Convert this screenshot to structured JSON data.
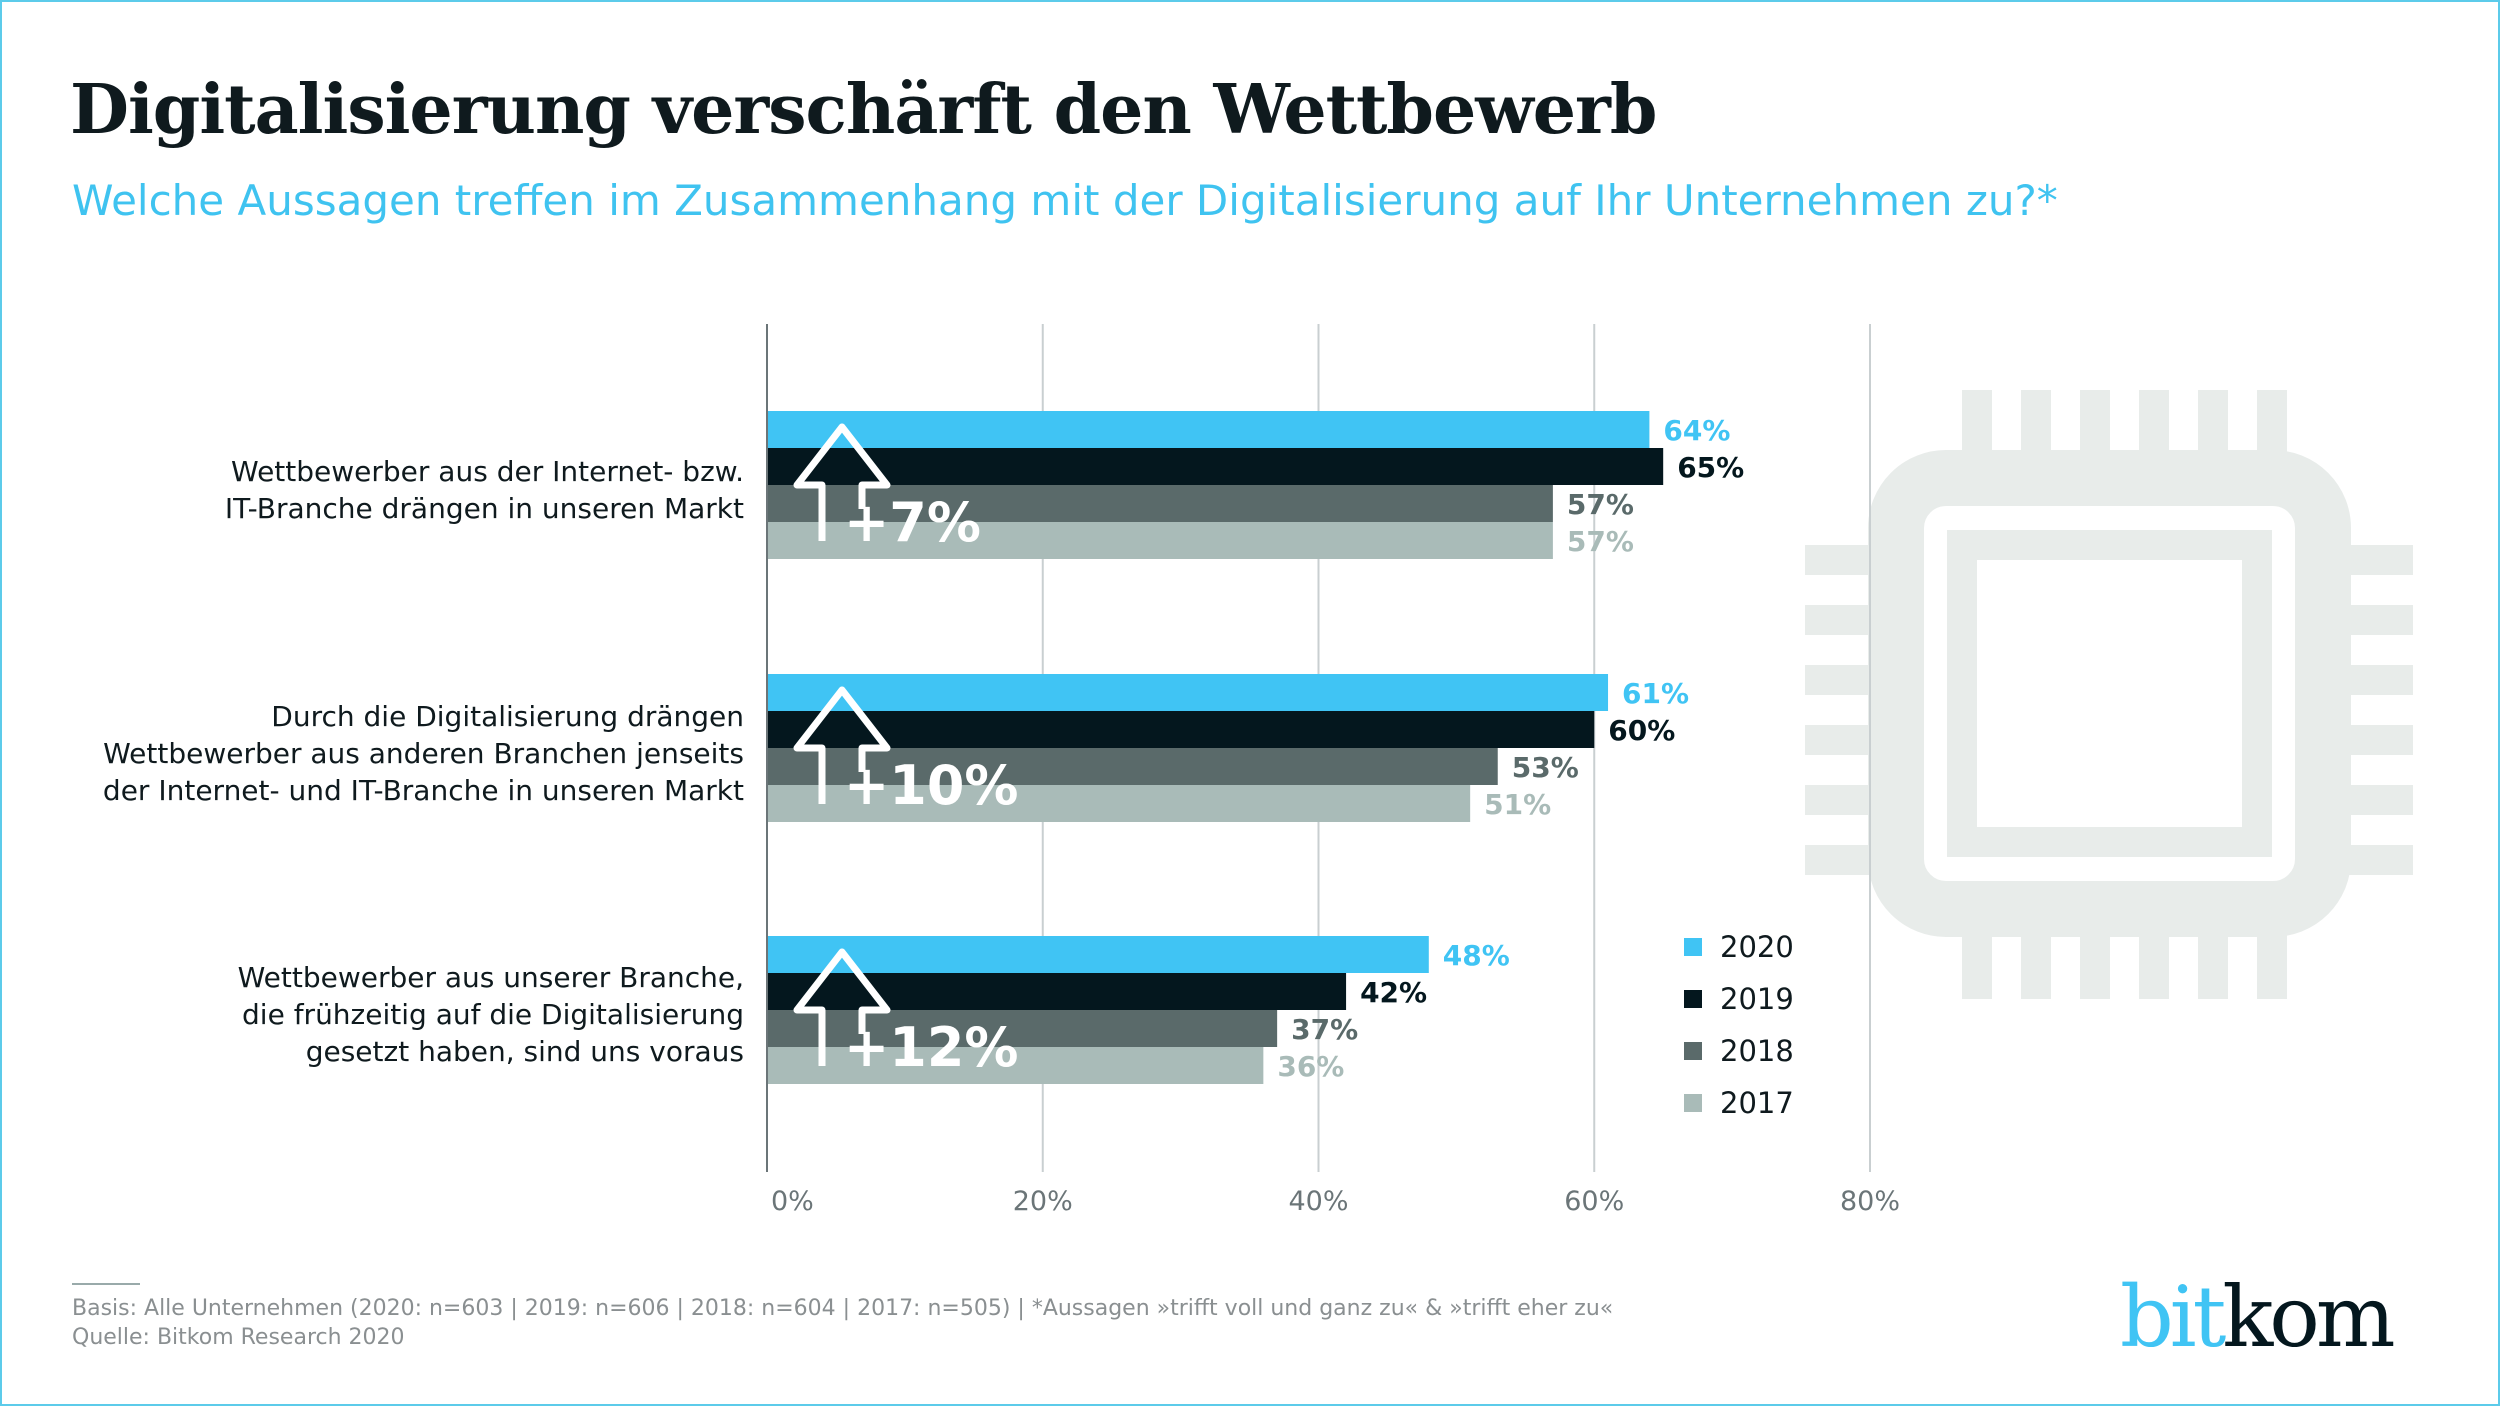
{
  "title": "Digitalisierung verschärft den Wettbewerb",
  "subtitle": "Welche Aussagen treffen im Zusammenhang mit der Digitalisierung auf Ihr Unternehmen zu?*",
  "chart_data": {
    "type": "bar",
    "orientation": "horizontal",
    "categories": [
      "Wettbewerber aus der Internet- bzw. IT-Branche drängen in unseren Markt",
      "Durch die Digitalisierung drängen Wettbewerber aus anderen Branchen jenseits der Internet- und IT-Branche in unseren Markt",
      "Wettbewerber aus unserer Branche, die frühzeitig auf die Digitalisierung gesetzt haben, sind uns voraus"
    ],
    "category_lines": [
      [
        "Wettbewerber aus der Internet- bzw.",
        "IT-Branche drängen in unseren Markt"
      ],
      [
        "Durch die Digitalisierung drängen",
        "Wettbewerber aus anderen Branchen jenseits",
        "der Internet- und IT-Branche in unseren Markt"
      ],
      [
        "Wettbewerber aus unserer Branche,",
        "die frühzeitig auf die Digitalisierung",
        "gesetzt haben, sind uns voraus"
      ]
    ],
    "series": [
      {
        "name": "2020",
        "color": "#40c4f4",
        "label_color": "#40c4f4",
        "values": [
          64,
          61,
          48
        ]
      },
      {
        "name": "2019",
        "color": "#04171e",
        "label_color": "#04171e",
        "values": [
          65,
          60,
          42
        ]
      },
      {
        "name": "2018",
        "color": "#5a6a6a",
        "label_color": "#5a6a6a",
        "values": [
          57,
          53,
          37
        ]
      },
      {
        "name": "2017",
        "color": "#a9bbb8",
        "label_color": "#a9bbb8",
        "values": [
          57,
          51,
          36
        ]
      }
    ],
    "annotations": [
      "+7%",
      "+10%",
      "+12%"
    ],
    "xlim": [
      0,
      80
    ],
    "xticks": [
      0,
      20,
      40,
      60,
      80
    ],
    "xtick_labels": [
      "0%",
      "20%",
      "40%",
      "60%",
      "80%"
    ],
    "grid": true,
    "legend_position": "right"
  },
  "footer": {
    "basis": "Basis: Alle Unternehmen (2020: n=603 | 2019: n=606 | 2018: n=604 | 2017: n=505) | *Aussagen »trifft voll und ganz zu« & »trifft eher zu«",
    "source": "Quelle: Bitkom Research 2020"
  },
  "logo": {
    "part1": "bit",
    "part2": "kom",
    "color1": "#40c4f4",
    "color2": "#04171e"
  },
  "decor": {
    "icon": "microchip-icon",
    "color": "#e8ecea"
  }
}
